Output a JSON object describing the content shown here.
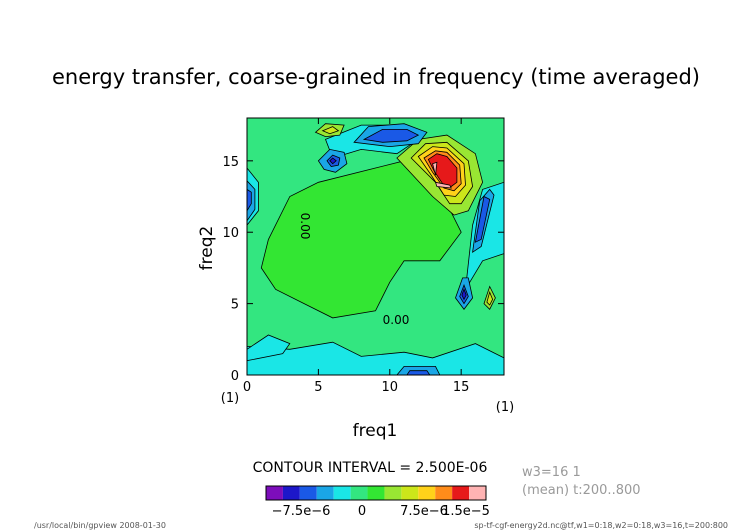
{
  "chart_data": {
    "type": "heatmap",
    "title": "energy transfer, coarse-grained in frequency (time averaged)",
    "xlabel": "freq1",
    "ylabel": "freq2",
    "xlim": [
      0,
      18
    ],
    "ylim": [
      0,
      18
    ],
    "x_ticks": [
      0,
      5,
      10,
      15
    ],
    "y_ticks": [
      0,
      5,
      10,
      15
    ],
    "x_tick_labels": [
      "0",
      "5",
      "10",
      "15"
    ],
    "y_tick_labels": [
      "0",
      "5",
      "10",
      "15"
    ],
    "corner_labels": [
      "(1)",
      "(1)"
    ],
    "contour_interval_text": "CONTOUR INTERVAL = 2.500E-06",
    "contour_labels": [
      "0.00",
      "0.00"
    ],
    "colorbar": {
      "tick_labels": [
        "−7.5e−6",
        "0",
        "7.5e−6",
        "1.5e−5"
      ],
      "colors": [
        "#7d0dbb",
        "#1d17c9",
        "#1a59e6",
        "#1aa6e6",
        "#1ae6e6",
        "#33e680",
        "#33e633",
        "#99e633",
        "#cce61a",
        "#ffd21a",
        "#ff8c1a",
        "#e6191a",
        "#ffb3b3"
      ]
    },
    "side_info": [
      "w3=16  1",
      "(mean) t:200..800"
    ],
    "footer_left": "/usr/local/bin/gpview   2008-01-30",
    "footer_right": "sp-tf-cgf-energy2d.nc@tf,w1=0:18,w2=0:18,w3=16,t=200:800",
    "grid": false
  }
}
